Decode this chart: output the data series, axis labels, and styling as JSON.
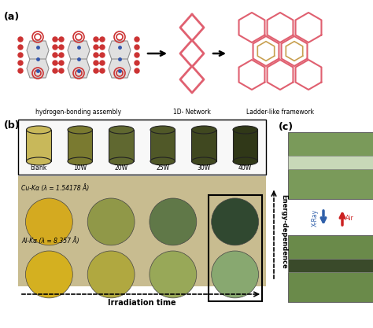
{
  "fig_width": 4.74,
  "fig_height": 4.17,
  "dpi": 100,
  "bg_color": "#ffffff",
  "panel_a_label": "(a)",
  "panel_b_label": "(b)",
  "panel_c_label": "(c)",
  "label_a_1": "hydrogen-bonding assembly",
  "label_a_2": "1D- Network",
  "label_a_3": "Ladder-like framework",
  "cylinder_labels": [
    "blank",
    "10W",
    "20W",
    "25W",
    "30W",
    "40W"
  ],
  "cylinder_colors": [
    "#c8b85a",
    "#7a7a30",
    "#606830",
    "#505828",
    "#404820",
    "#303818"
  ],
  "cu_label": "Cu-Kα (λ = 1.54178 Å)",
  "al_label": "Al-Kα (λ = 8.357 Å)",
  "irradiation_label": "Irradiation time",
  "energy_label": "Energy-dependence",
  "cu_disk_colors": [
    "#d4aa20",
    "#909848",
    "#607848",
    "#304830"
  ],
  "al_disk_colors": [
    "#d4b020",
    "#b0a840",
    "#98a858",
    "#88a870"
  ],
  "xray_label": "X-Ray",
  "air_label": "Air",
  "arrow_xray_color": "#3060aa",
  "arrow_air_color": "#cc2222",
  "network_color": "#e06070",
  "framework_color_outer": "#e06070",
  "framework_color_inner": "#c8a050",
  "mol_chain_color": "#cc3333",
  "mol_gray": "#909090",
  "mol_blue": "#3355aa",
  "photo_bg_top": "#7a9a5a",
  "photo_bg_bot": "#6a8a4a",
  "strip_color_top": "#c8d8b8",
  "strip_color_bot": "#3a4a2a"
}
